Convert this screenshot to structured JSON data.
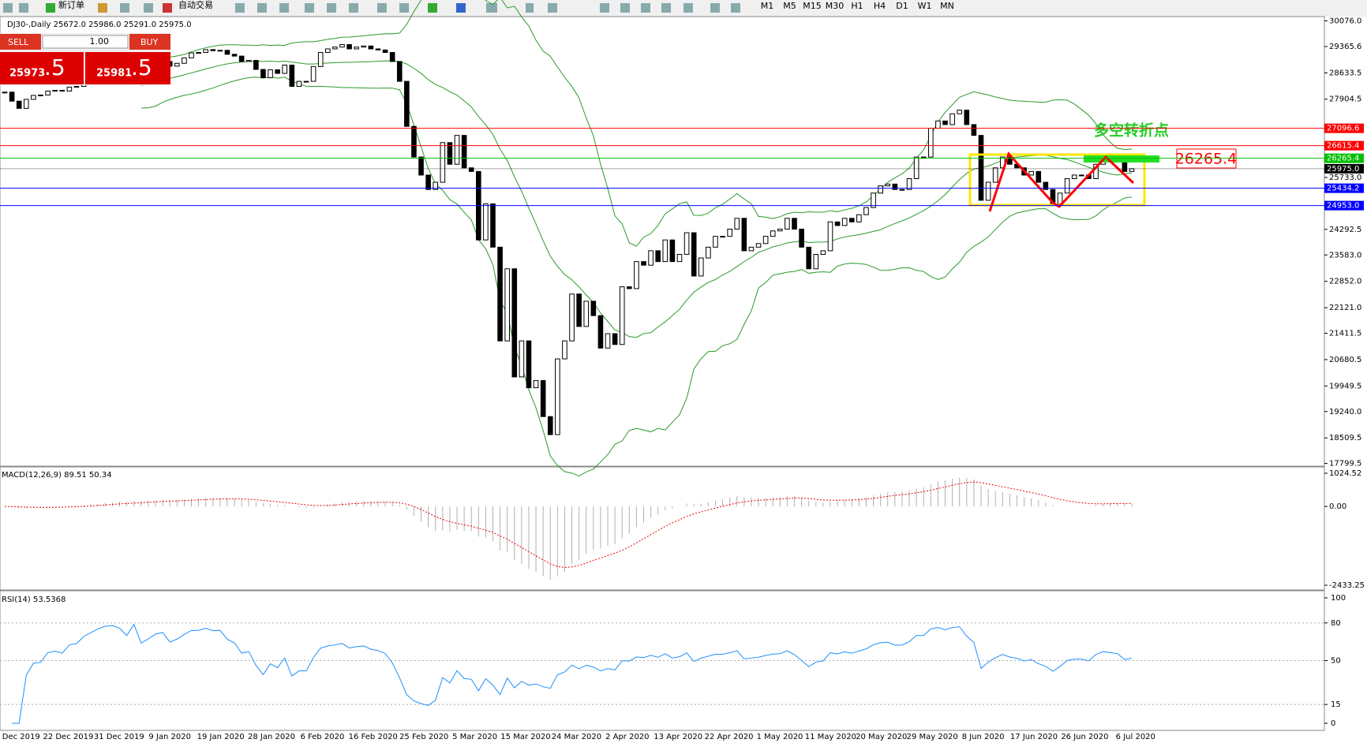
{
  "toolbar": {
    "new_order": "新订单",
    "auto_trade": "自动交易",
    "timeframes": [
      "M1",
      "M5",
      "M15",
      "M30",
      "H1",
      "H4",
      "D1",
      "W1",
      "MN"
    ]
  },
  "chart": {
    "header": "DJ30-,Daily  25672.0 25986.0 25291.0 25975.0",
    "trade_panel": {
      "sell": "SELL",
      "buy": "BUY",
      "lot": "1.00",
      "sell_main": "25973",
      ".sell_frac": ".5",
      "sell_frac": ".5",
      "buy_main": "25981",
      "buy_frac": ".5"
    },
    "ylim": [
      17799.5,
      30076.0
    ],
    "yticks": [
      {
        "value": 30076,
        "label": "30076.0"
      },
      29365.6,
      28633.5,
      27904.5,
      {
        "value": 25733,
        "label": "25733.0"
      },
      24292.5,
      {
        "value": 23583,
        "label": "23583.0"
      },
      {
        "value": 22852,
        "label": "22852.0"
      },
      {
        "value": 22121,
        "label": "22121.0"
      },
      21411.5,
      20680.5,
      19949.5,
      {
        "value": 19240,
        "label": "19240.0"
      },
      18509.5,
      17799.5
    ],
    "levels": [
      {
        "value": 27096.6,
        "label": "27096.6",
        "color": "#ff0000"
      },
      {
        "value": 26615.4,
        "label": "26615.4",
        "color": "#ff0000"
      },
      {
        "value": 26265.4,
        "label": "26265.4",
        "color": "#00c000"
      },
      {
        "value": 25975,
        "label": "25975.0",
        "color": "#000000"
      },
      {
        "value": 25434.2,
        "label": "25434.2",
        "color": "#0000ff"
      },
      {
        "value": 24953,
        "label": "24953.0",
        "color": "#0000ff"
      }
    ],
    "closes": [
      28100,
      27850,
      27650,
      27900,
      28010,
      28020,
      28130,
      28150,
      28130,
      28240,
      28260,
      28380,
      28460,
      28550,
      28620,
      28640,
      28620,
      28560,
      28860,
      28640,
      28750,
      28900,
      28950,
      28820,
      28900,
      29050,
      29190,
      29200,
      29280,
      29250,
      29260,
      29150,
      29100,
      28950,
      28980,
      28730,
      28500,
      28720,
      28620,
      28850,
      28260,
      28400,
      28400,
      28810,
      29200,
      29300,
      29350,
      29420,
      29300,
      29350,
      29380,
      29300,
      29270,
      29200,
      28950,
      28400,
      27150,
      26300,
      25800,
      25400,
      25600,
      26700,
      26100,
      26900,
      26000,
      25900,
      24000,
      25000,
      23800,
      21200,
      23200,
      20200,
      21200,
      19900,
      20100,
      19100,
      18600,
      20700,
      21200,
      22500,
      21600,
      22300,
      21900,
      21000,
      21400,
      21100,
      22700,
      22650,
      23400,
      23300,
      23700,
      23400,
      24000,
      23400,
      23600,
      24200,
      23000,
      23500,
      23800,
      24100,
      24100,
      24300,
      24600,
      23700,
      23800,
      23900,
      24100,
      24250,
      24300,
      24600,
      24300,
      23800,
      23200,
      23600,
      23700,
      24500,
      24400,
      24600,
      24500,
      24700,
      24900,
      25300,
      25500,
      25550,
      25400,
      25400,
      25700,
      26300,
      26300,
      27100,
      27300,
      27200,
      27500,
      27600,
      27200,
      26900,
      25100,
      25600,
      26000,
      26300,
      26100,
      26000,
      25800,
      25900,
      25600,
      25400,
      25000,
      25300,
      25700,
      25800,
      25800,
      25700,
      26100,
      26300,
      26250,
      26200,
      25900,
      25975
    ],
    "dates": [
      "2 Dec 2019",
      "22 Dec 2019",
      "31 Dec 2019",
      "9 Jan 2020",
      "19 Jan 2020",
      "28 Jan 2020",
      "6 Feb 2020",
      "16 Feb 2020",
      "25 Feb 2020",
      "5 Mar 2020",
      "15 Mar 2020",
      "24 Mar 2020",
      "2 Apr 2020",
      "13 Apr 2020",
      "22 Apr 2020",
      "1 May 2020",
      "11 May 2020",
      "20 May 2020",
      "29 May 2020",
      "8 Jun 2020",
      "17 Jun 2020",
      "26 Jun 2020",
      "6 Jul 2020"
    ],
    "annotation": "多空转折点",
    "macd": {
      "label": "MACD(12,26,9) 89.51 50.34",
      "ylim": [
        -2433.25,
        1024.52
      ],
      "yticks": [
        1024.52,
        {
          "value": 0,
          "label": "0.00"
        },
        -2433.25
      ]
    },
    "rsi": {
      "label": "RSI(14) 53.5368",
      "ylim": [
        0,
        100
      ],
      "yticks": [
        100,
        80,
        50,
        15,
        0
      ],
      "levels": [
        80,
        50,
        15
      ]
    }
  }
}
